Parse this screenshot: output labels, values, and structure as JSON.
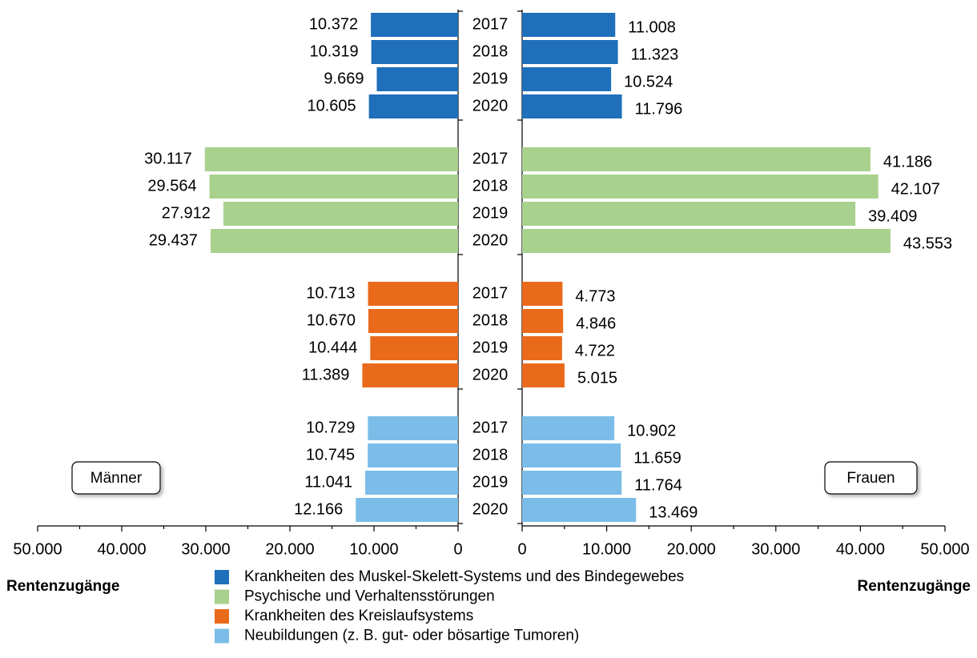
{
  "chart_data": {
    "type": "butterfly",
    "categories": [
      "2017",
      "2018",
      "2019",
      "2020"
    ],
    "xlabel": "Rentenzugänge",
    "xlim": [
      0,
      50000
    ],
    "xticks": [
      0,
      {
        "value": 10000,
        "label": "10.000"
      },
      {
        "value": 20000,
        "label": "20.000"
      },
      {
        "value": 30000,
        "label": "30.000"
      },
      {
        "value": 40000,
        "label": "40.000"
      },
      {
        "value": 50000,
        "label": "50.000"
      }
    ],
    "minor_xticks": [
      5000,
      15000,
      25000,
      35000,
      45000
    ],
    "series": [
      {
        "name": "Krankheiten des Muskel-Skelett-Systems und des Bindegewebes",
        "color": "#1f6fba"
      },
      {
        "name": "Psychische und Verhaltensstörungen",
        "color": "#a9d18e"
      },
      {
        "name": "Krankheiten des Kreislaufsystems",
        "color": "#ea6a1b"
      },
      {
        "name": "Neubildungen (z. B. gut- oder bösartige Tumoren)",
        "color": "#7bbde8"
      }
    ],
    "panels": [
      {
        "label": "Männer",
        "series": [
          {
            "values": [
              10372,
              10319,
              9669,
              10605
            ],
            "value_labels": [
              "10.372",
              "10.319",
              "9.669",
              "10.605"
            ]
          },
          {
            "values": [
              30117,
              29564,
              27912,
              29437
            ],
            "value_labels": [
              "30.117",
              "29.564",
              "27.912",
              "29.437"
            ]
          },
          {
            "values": [
              10713,
              10670,
              10444,
              11389
            ],
            "value_labels": [
              "10.713",
              "10.670",
              "10.444",
              "11.389"
            ]
          },
          {
            "values": [
              10729,
              10745,
              11041,
              12166
            ],
            "value_labels": [
              "10.729",
              "10.745",
              "11.041",
              "12.166"
            ]
          }
        ]
      },
      {
        "label": "Frauen",
        "series": [
          {
            "values": [
              11008,
              11323,
              10524,
              11796
            ],
            "value_labels": [
              "11.008",
              "11.323",
              "10.524",
              "11.796"
            ]
          },
          {
            "values": [
              41186,
              42107,
              39409,
              43553
            ],
            "value_labels": [
              "41.186",
              "42.107",
              "39.409",
              "43.553"
            ]
          },
          {
            "values": [
              4773,
              4846,
              4722,
              5015
            ],
            "value_labels": [
              "4.773",
              "4.846",
              "4.722",
              "5.015"
            ]
          },
          {
            "values": [
              10902,
              11659,
              11764,
              13469
            ],
            "value_labels": [
              "10.902",
              "11.659",
              "11.764",
              "13.469"
            ]
          }
        ]
      }
    ]
  }
}
